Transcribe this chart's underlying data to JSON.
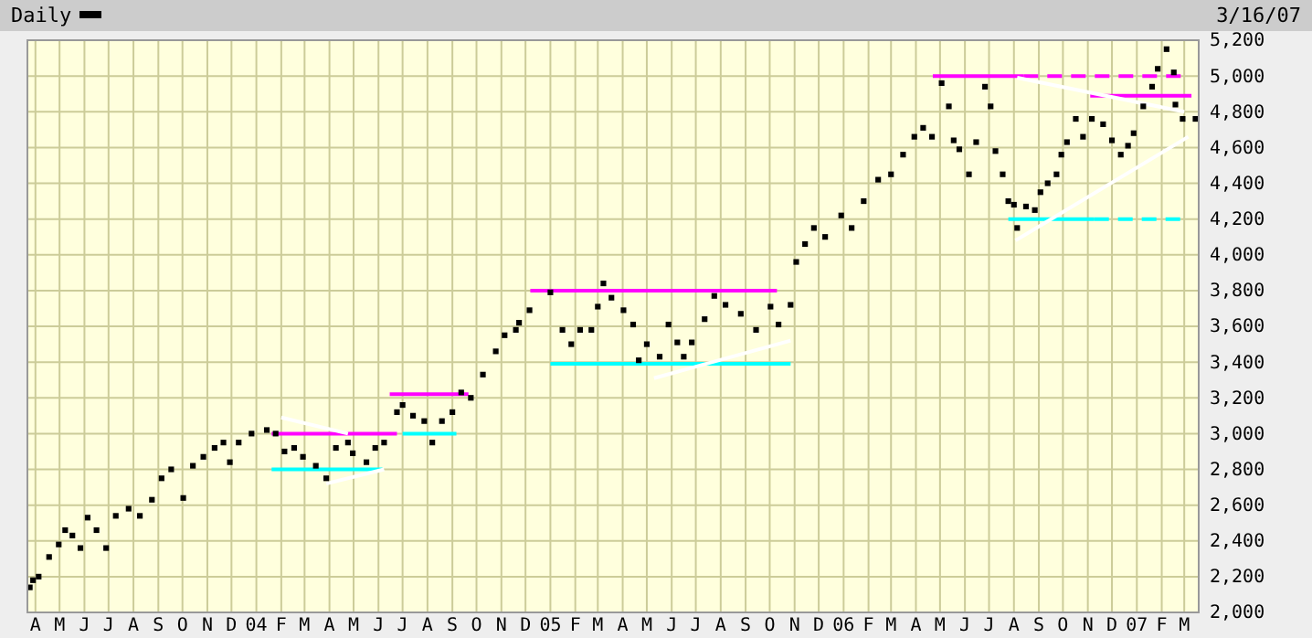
{
  "chart_data": {
    "type": "scatter",
    "title": "Daily",
    "annotations": [
      "3/16/07"
    ],
    "xlim": [
      "2003-03-22",
      "2007-03-19"
    ],
    "ylim": [
      2000,
      5200
    ],
    "xticks": [
      {
        "value": "2003-04",
        "label": "A"
      },
      {
        "value": "2003-05",
        "label": "M"
      },
      {
        "value": "2003-06",
        "label": "J"
      },
      {
        "value": "2003-07",
        "label": "J"
      },
      {
        "value": "2003-08",
        "label": "A"
      },
      {
        "value": "2003-09",
        "label": "S"
      },
      {
        "value": "2003-10",
        "label": "O"
      },
      {
        "value": "2003-11",
        "label": "N"
      },
      {
        "value": "2003-12",
        "label": "D"
      },
      {
        "value": "2004-01",
        "label": "04"
      },
      {
        "value": "2004-02",
        "label": "F"
      },
      {
        "value": "2004-03",
        "label": "M"
      },
      {
        "value": "2004-04",
        "label": "A"
      },
      {
        "value": "2004-05",
        "label": "M"
      },
      {
        "value": "2004-06",
        "label": "J"
      },
      {
        "value": "2004-07",
        "label": "J"
      },
      {
        "value": "2004-08",
        "label": "A"
      },
      {
        "value": "2004-09",
        "label": "S"
      },
      {
        "value": "2004-10",
        "label": "O"
      },
      {
        "value": "2004-11",
        "label": "N"
      },
      {
        "value": "2004-12",
        "label": "D"
      },
      {
        "value": "2005-01",
        "label": "05"
      },
      {
        "value": "2005-02",
        "label": "F"
      },
      {
        "value": "2005-03",
        "label": "M"
      },
      {
        "value": "2005-04",
        "label": "A"
      },
      {
        "value": "2005-05",
        "label": "M"
      },
      {
        "value": "2005-06",
        "label": "J"
      },
      {
        "value": "2005-07",
        "label": "J"
      },
      {
        "value": "2005-08",
        "label": "A"
      },
      {
        "value": "2005-09",
        "label": "S"
      },
      {
        "value": "2005-10",
        "label": "O"
      },
      {
        "value": "2005-11",
        "label": "N"
      },
      {
        "value": "2005-12",
        "label": "D"
      },
      {
        "value": "2006-01",
        "label": "06"
      },
      {
        "value": "2006-02",
        "label": "F"
      },
      {
        "value": "2006-03",
        "label": "M"
      },
      {
        "value": "2006-04",
        "label": "A"
      },
      {
        "value": "2006-05",
        "label": "M"
      },
      {
        "value": "2006-06",
        "label": "J"
      },
      {
        "value": "2006-07",
        "label": "J"
      },
      {
        "value": "2006-08",
        "label": "A"
      },
      {
        "value": "2006-09",
        "label": "S"
      },
      {
        "value": "2006-10",
        "label": "O"
      },
      {
        "value": "2006-11",
        "label": "N"
      },
      {
        "value": "2006-12",
        "label": "D"
      },
      {
        "value": "2007-01",
        "label": "07"
      },
      {
        "value": "2007-02",
        "label": "F"
      },
      {
        "value": "2007-03",
        "label": "M"
      }
    ],
    "yticks": [
      {
        "value": 2000,
        "label": "2,000"
      },
      {
        "value": 2200,
        "label": "2,200"
      },
      {
        "value": 2400,
        "label": "2,400"
      },
      {
        "value": 2600,
        "label": "2,600"
      },
      {
        "value": 2800,
        "label": "2,800"
      },
      {
        "value": 3000,
        "label": "3,000"
      },
      {
        "value": 3200,
        "label": "3,200"
      },
      {
        "value": 3400,
        "label": "3,400"
      },
      {
        "value": 3600,
        "label": "3,600"
      },
      {
        "value": 3800,
        "label": "3,800"
      },
      {
        "value": 4000,
        "label": "4,000"
      },
      {
        "value": 4200,
        "label": "4,200"
      },
      {
        "value": 4400,
        "label": "4,400"
      },
      {
        "value": 4600,
        "label": "4,600"
      },
      {
        "value": 4800,
        "label": "4,800"
      },
      {
        "value": 5000,
        "label": "5,000"
      },
      {
        "value": 5200,
        "label": "5,200"
      }
    ],
    "grid": true,
    "series": [
      {
        "marker": "square",
        "color": "#000000",
        "x": [
          "2003-03-25",
          "2003-03-29",
          "2003-04-05",
          "2003-04-18",
          "2003-04-30",
          "2003-05-08",
          "2003-05-17",
          "2003-05-27",
          "2003-06-05",
          "2003-06-16",
          "2003-06-28",
          "2003-07-10",
          "2003-07-26",
          "2003-08-09",
          "2003-08-24",
          "2003-09-05",
          "2003-09-17",
          "2003-10-02",
          "2003-10-14",
          "2003-10-27",
          "2003-11-10",
          "2003-11-21",
          "2003-11-29",
          "2003-12-10",
          "2003-12-26",
          "2004-01-14",
          "2004-01-25",
          "2004-02-05",
          "2004-02-17",
          "2004-02-28",
          "2004-03-15",
          "2004-03-28",
          "2004-04-09",
          "2004-04-24",
          "2004-04-30",
          "2004-05-17",
          "2004-05-28",
          "2004-06-08",
          "2004-06-24",
          "2004-07-01",
          "2004-07-14",
          "2004-07-28",
          "2004-08-07",
          "2004-08-19",
          "2004-09-01",
          "2004-09-12",
          "2004-09-24",
          "2004-10-09",
          "2004-10-25",
          "2004-11-05",
          "2004-11-19",
          "2004-11-23",
          "2004-12-06",
          "2005-01-01",
          "2005-01-16",
          "2005-01-27",
          "2005-02-07",
          "2005-02-21",
          "2005-03-01",
          "2005-03-08",
          "2005-03-18",
          "2005-04-02",
          "2005-04-14",
          "2005-04-21",
          "2005-05-01",
          "2005-05-17",
          "2005-05-28",
          "2005-06-08",
          "2005-06-16",
          "2005-06-26",
          "2005-07-12",
          "2005-07-24",
          "2005-08-07",
          "2005-08-26",
          "2005-09-14",
          "2005-10-02",
          "2005-10-12",
          "2005-10-27",
          "2005-11-03",
          "2005-11-14",
          "2005-11-25",
          "2005-12-09",
          "2005-12-29",
          "2006-01-11",
          "2006-01-26",
          "2006-02-13",
          "2006-03-01",
          "2006-03-16",
          "2006-03-30",
          "2006-04-10",
          "2006-04-21",
          "2006-05-03",
          "2006-05-12",
          "2006-05-18",
          "2006-05-25",
          "2006-06-06",
          "2006-06-15",
          "2006-06-26",
          "2006-07-03",
          "2006-07-09",
          "2006-07-18",
          "2006-07-25",
          "2006-08-01",
          "2006-08-05",
          "2006-08-16",
          "2006-08-27",
          "2006-09-03",
          "2006-09-12",
          "2006-09-23",
          "2006-09-29",
          "2006-10-06",
          "2006-10-17",
          "2006-10-26",
          "2006-11-06",
          "2006-11-20",
          "2006-12-01",
          "2006-12-12",
          "2006-12-21",
          "2006-12-28",
          "2007-01-09",
          "2007-01-20",
          "2007-01-27",
          "2007-02-07",
          "2007-02-16",
          "2007-02-18",
          "2007-02-27",
          "2007-03-15"
        ],
        "values": [
          2140,
          2180,
          2200,
          2310,
          2380,
          2460,
          2430,
          2360,
          2530,
          2460,
          2360,
          2540,
          2580,
          2540,
          2630,
          2750,
          2800,
          2640,
          2820,
          2870,
          2920,
          2950,
          2840,
          2950,
          3000,
          3020,
          3000,
          2900,
          2920,
          2870,
          2820,
          2750,
          2920,
          2950,
          2890,
          2840,
          2920,
          2950,
          3120,
          3160,
          3100,
          3070,
          2950,
          3070,
          3120,
          3230,
          3200,
          3330,
          3460,
          3550,
          3580,
          3620,
          3690,
          3790,
          3580,
          3500,
          3580,
          3580,
          3710,
          3840,
          3760,
          3690,
          3610,
          3410,
          3500,
          3430,
          3610,
          3510,
          3430,
          3510,
          3640,
          3770,
          3720,
          3670,
          3580,
          3710,
          3610,
          3720,
          3960,
          4060,
          4150,
          4100,
          4220,
          4150,
          4300,
          4420,
          4450,
          4560,
          4660,
          4710,
          4660,
          4960,
          4830,
          4640,
          4590,
          4450,
          4630,
          4940,
          4830,
          4580,
          4450,
          4300,
          4280,
          4150,
          4270,
          4250,
          4350,
          4400,
          4450,
          4560,
          4630,
          4760,
          4660,
          4760,
          4730,
          4640,
          4560,
          4610,
          4680,
          4830,
          4940,
          5040,
          5150,
          5020,
          4840,
          4760,
          4760
        ]
      },
      {
        "type": "line",
        "color": "#ff00ff",
        "x": [
          "2004-01-20",
          "2004-06-24"
        ],
        "values": [
          3000,
          3000
        ]
      },
      {
        "type": "line",
        "color": "#00ffff",
        "x": [
          "2004-01-20",
          "2004-06-06"
        ],
        "values": [
          2800,
          2800
        ]
      },
      {
        "type": "line",
        "color": "#ff00ff",
        "x": [
          "2004-06-15",
          "2004-09-21"
        ],
        "values": [
          3220,
          3220
        ]
      },
      {
        "type": "line",
        "color": "#00ffff",
        "x": [
          "2004-07-01",
          "2004-09-06"
        ],
        "values": [
          3000,
          3000
        ]
      },
      {
        "type": "line",
        "color": "#ff00ff",
        "x": [
          "2004-12-07",
          "2005-10-10"
        ],
        "values": [
          3800,
          3800
        ]
      },
      {
        "type": "line",
        "color": "#00ffff",
        "x": [
          "2005-01-01",
          "2005-10-27"
        ],
        "values": [
          3390,
          3390
        ]
      },
      {
        "type": "line",
        "color": "#ff00ff",
        "x": [
          "2006-04-22",
          "2006-08-13"
        ],
        "values": [
          5000,
          5000
        ]
      },
      {
        "type": "line",
        "color": "#ff00ff",
        "line_style": "dashed",
        "x": [
          "2006-08-13",
          "2007-03-03"
        ],
        "values": [
          5000,
          5000
        ]
      },
      {
        "type": "line",
        "color": "#ff00ff",
        "x": [
          "2006-11-04",
          "2007-03-10"
        ],
        "values": [
          4890,
          4890
        ]
      },
      {
        "type": "line",
        "color": "#00ffff",
        "x": [
          "2006-07-25",
          "2006-11-09"
        ],
        "values": [
          4200,
          4200
        ]
      },
      {
        "type": "line",
        "color": "#00ffff",
        "line_style": "dashed",
        "x": [
          "2006-11-09",
          "2007-03-01"
        ],
        "values": [
          4200,
          4200
        ]
      },
      {
        "type": "line",
        "color": "#ffffff",
        "x": [
          "2004-02-01",
          "2004-04-24"
        ],
        "values": [
          3090,
          3000
        ]
      },
      {
        "type": "line",
        "color": "#ffffff",
        "x": [
          "2004-03-28",
          "2004-06-08"
        ],
        "values": [
          2720,
          2800
        ]
      },
      {
        "type": "line",
        "color": "#ffffff",
        "x": [
          "2005-05-10",
          "2005-10-27"
        ],
        "values": [
          3310,
          3520
        ]
      },
      {
        "type": "line",
        "color": "#ffffff",
        "x": [
          "2006-08-03",
          "2007-03-06"
        ],
        "values": [
          4080,
          4660
        ]
      },
      {
        "type": "line",
        "color": "#ffffff",
        "x": [
          "2006-08-05",
          "2007-03-01"
        ],
        "values": [
          4990,
          4800
        ]
      }
    ]
  }
}
